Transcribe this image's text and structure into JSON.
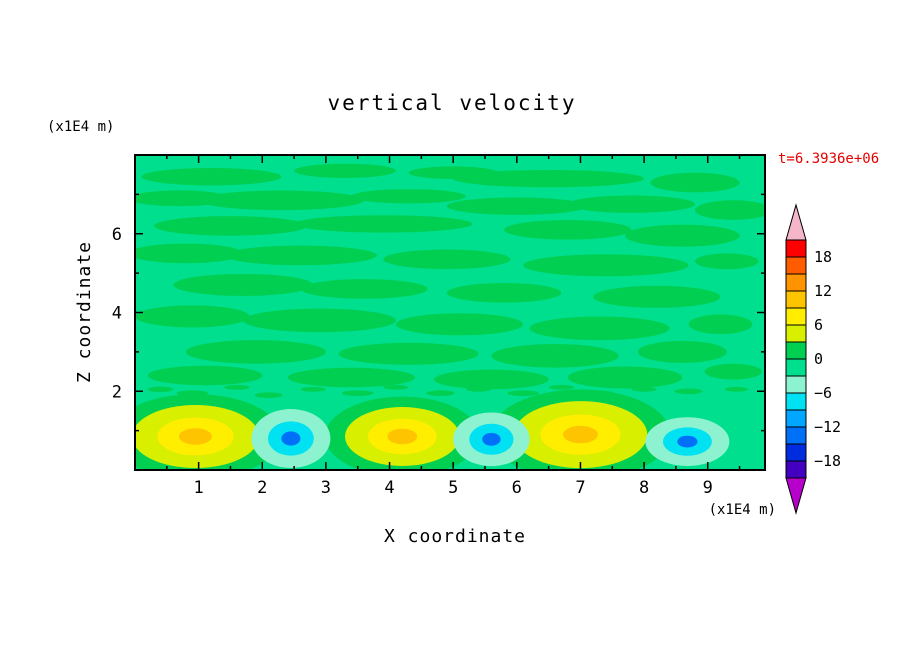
{
  "colors": {
    "time_text": "#e60000",
    "text": "#000000",
    "frame": "#000000"
  },
  "chart_data": {
    "type": "heatmap",
    "subtype": "filled-contour",
    "title": "vertical velocity",
    "xlabel": "X coordinate",
    "ylabel": "Z coordinate",
    "x_unit": "(x1E4 m)",
    "y_unit": "(x1E4 m)",
    "annotation": "t=6.3936e+06",
    "xlim": [
      0,
      9.9
    ],
    "ylim": [
      0,
      8
    ],
    "x_ticks": [
      1,
      2,
      3,
      4,
      5,
      6,
      7,
      8,
      9
    ],
    "x_minor_ticks": [
      0.5,
      1.5,
      2.5,
      3.5,
      4.5,
      5.5,
      6.5,
      7.5,
      8.5,
      9.5
    ],
    "y_ticks": [
      2,
      4,
      6
    ],
    "y_minor_ticks": [
      1,
      3,
      5,
      7
    ],
    "contour_interval": 3,
    "grid": false,
    "colorbar": {
      "position": "right",
      "labels": [
        "18",
        "12",
        "6",
        "0",
        "−6",
        "−12",
        "−18"
      ],
      "levels": [
        -21,
        -18,
        -15,
        -12,
        -9,
        -6,
        -3,
        0,
        3,
        6,
        9,
        12,
        15,
        18,
        21
      ],
      "band_colors_top_to_bottom": [
        "#ff0000",
        "#ff5c00",
        "#ff9400",
        "#ffc400",
        "#ffee00",
        "#d8ef00",
        "#00cf52",
        "#00df8e",
        "#8cf2d0",
        "#00e2f2",
        "#00a6ff",
        "#0070f8",
        "#002ce0",
        "#4400c0"
      ],
      "over_arrow_color": "#f4b6c8",
      "under_arrow_color": "#b800cc"
    },
    "field_summary": {
      "background_value_range": "-3 to 3 (near zero, green)",
      "updraft_centers_x": [
        0.95,
        4.2,
        7.0
      ],
      "downdraft_centers_x": [
        2.45,
        5.6,
        8.7
      ],
      "plume_height_z": "0 to 2",
      "updraft_peak_value": "≈ +10",
      "downdraft_peak_value": "≈ −10"
    },
    "render": {
      "background_color": "#00df8e",
      "patch_color": "#00cf52",
      "patches": [
        [
          1.2,
          7.45,
          1.1,
          0.22
        ],
        [
          3.3,
          7.6,
          0.8,
          0.18
        ],
        [
          5.0,
          7.55,
          0.7,
          0.16
        ],
        [
          6.5,
          7.4,
          1.5,
          0.22
        ],
        [
          8.8,
          7.3,
          0.7,
          0.25
        ],
        [
          0.7,
          6.9,
          0.8,
          0.2
        ],
        [
          2.3,
          6.85,
          1.3,
          0.25
        ],
        [
          4.3,
          6.95,
          0.9,
          0.18
        ],
        [
          6.0,
          6.7,
          1.1,
          0.22
        ],
        [
          7.8,
          6.75,
          1.0,
          0.22
        ],
        [
          9.4,
          6.6,
          0.6,
          0.25
        ],
        [
          1.5,
          6.2,
          1.2,
          0.25
        ],
        [
          3.9,
          6.25,
          1.4,
          0.22
        ],
        [
          6.8,
          6.1,
          1.0,
          0.25
        ],
        [
          8.6,
          5.95,
          0.9,
          0.28
        ],
        [
          0.8,
          5.5,
          0.9,
          0.25
        ],
        [
          2.6,
          5.45,
          1.2,
          0.25
        ],
        [
          4.9,
          5.35,
          1.0,
          0.25
        ],
        [
          7.4,
          5.2,
          1.3,
          0.28
        ],
        [
          9.3,
          5.3,
          0.5,
          0.2
        ],
        [
          1.7,
          4.7,
          1.1,
          0.28
        ],
        [
          3.6,
          4.6,
          1.0,
          0.25
        ],
        [
          5.8,
          4.5,
          0.9,
          0.25
        ],
        [
          8.2,
          4.4,
          1.0,
          0.28
        ],
        [
          0.9,
          3.9,
          0.9,
          0.28
        ],
        [
          2.9,
          3.8,
          1.2,
          0.3
        ],
        [
          5.1,
          3.7,
          1.0,
          0.28
        ],
        [
          7.3,
          3.6,
          1.1,
          0.3
        ],
        [
          9.2,
          3.7,
          0.5,
          0.25
        ],
        [
          1.9,
          3.0,
          1.1,
          0.3
        ],
        [
          4.3,
          2.95,
          1.1,
          0.28
        ],
        [
          6.6,
          2.9,
          1.0,
          0.3
        ],
        [
          8.6,
          3.0,
          0.7,
          0.28
        ],
        [
          1.1,
          2.4,
          0.9,
          0.25
        ],
        [
          3.4,
          2.35,
          1.0,
          0.25
        ],
        [
          5.6,
          2.3,
          0.9,
          0.25
        ],
        [
          7.7,
          2.35,
          0.9,
          0.28
        ],
        [
          9.4,
          2.5,
          0.45,
          0.2
        ],
        [
          0.4,
          2.05,
          0.2,
          0.07
        ],
        [
          0.9,
          1.95,
          0.25,
          0.07
        ],
        [
          1.6,
          2.1,
          0.2,
          0.06
        ],
        [
          2.1,
          1.9,
          0.22,
          0.07
        ],
        [
          2.8,
          2.05,
          0.2,
          0.06
        ],
        [
          3.5,
          1.95,
          0.25,
          0.07
        ],
        [
          4.1,
          2.1,
          0.2,
          0.06
        ],
        [
          4.8,
          1.95,
          0.22,
          0.07
        ],
        [
          5.4,
          2.05,
          0.2,
          0.06
        ],
        [
          6.1,
          1.95,
          0.25,
          0.07
        ],
        [
          6.7,
          2.1,
          0.2,
          0.06
        ],
        [
          7.3,
          1.95,
          0.22,
          0.07
        ],
        [
          8.0,
          2.05,
          0.2,
          0.06
        ],
        [
          8.7,
          2.0,
          0.22,
          0.07
        ],
        [
          9.45,
          2.05,
          0.18,
          0.06
        ]
      ],
      "updraft_scales": [
        1.35,
        1.0,
        0.6,
        0.26
      ],
      "updraft_colors": [
        "#00cf52",
        "#d8ef00",
        "#ffee00",
        "#ffc400"
      ],
      "updrafts": [
        {
          "x": 0.95,
          "z": 0.85,
          "rx": 1.0,
          "rz": 0.8
        },
        {
          "x": 4.2,
          "z": 0.85,
          "rx": 0.9,
          "rz": 0.75
        },
        {
          "x": 7.0,
          "z": 0.9,
          "rx": 1.05,
          "rz": 0.85
        }
      ],
      "downdraft_scales": [
        1.0,
        0.58,
        0.24
      ],
      "downdraft_colors": [
        "#8cf2d0",
        "#00e2f2",
        "#0070f8"
      ],
      "downdrafts": [
        {
          "x": 2.45,
          "z": 0.8,
          "rx": 0.62,
          "rz": 0.75
        },
        {
          "x": 5.6,
          "z": 0.78,
          "rx": 0.6,
          "rz": 0.68
        },
        {
          "x": 8.68,
          "z": 0.72,
          "rx": 0.66,
          "rz": 0.62
        }
      ]
    }
  }
}
